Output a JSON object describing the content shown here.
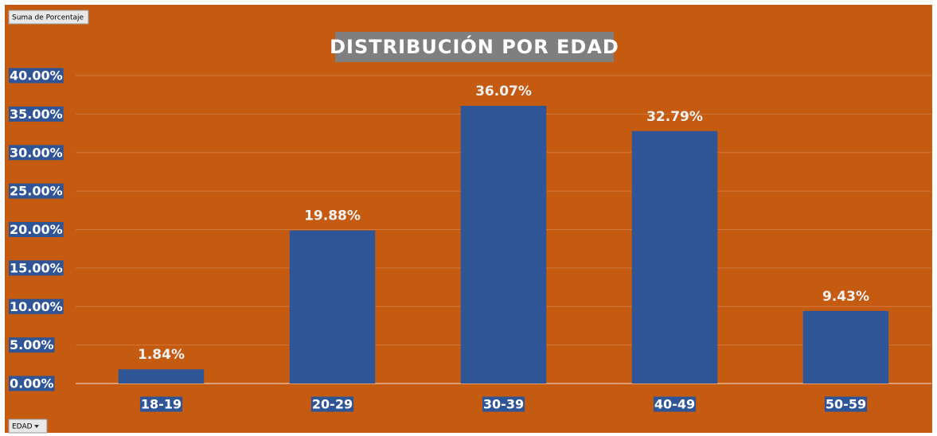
{
  "field_button": "Suma de Porcentaje",
  "axis_button": "EDAD",
  "chart_data": {
    "type": "bar",
    "title": "DISTRIBUCIÓN POR EDAD",
    "categories": [
      "18-19",
      "20-29",
      "30-39",
      "40-49",
      "50-59"
    ],
    "values": [
      1.84,
      19.88,
      36.07,
      32.79,
      9.43
    ],
    "value_labels": [
      "1.84%",
      "19.88%",
      "36.07%",
      "32.79%",
      "9.43%"
    ],
    "color": "#2f5597",
    "ylim": [
      0,
      40
    ],
    "yticks": [
      {
        "value": 0,
        "label": "0.00%"
      },
      {
        "value": 5,
        "label": "5.00%"
      },
      {
        "value": 10,
        "label": "10.00%"
      },
      {
        "value": 15,
        "label": "15.00%"
      },
      {
        "value": 20,
        "label": "20.00%"
      },
      {
        "value": 25,
        "label": "25.00%"
      },
      {
        "value": 30,
        "label": "30.00%"
      },
      {
        "value": 35,
        "label": "35.00%"
      },
      {
        "value": 40,
        "label": "40.00%"
      }
    ],
    "grid": true
  }
}
